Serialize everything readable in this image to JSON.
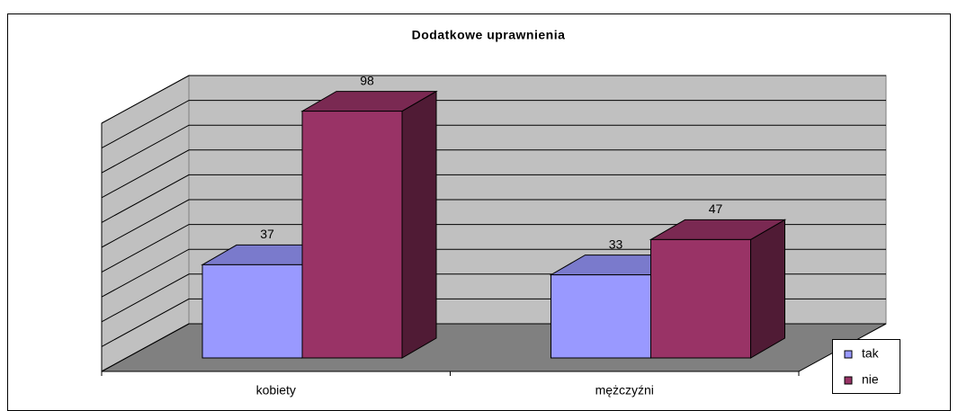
{
  "chart_data": {
    "type": "bar3d",
    "title": "Dodatkowe uprawnienia",
    "categories": [
      "kobiety",
      "mężczyźni"
    ],
    "series": [
      {
        "name": "tak",
        "color": "#9999ff",
        "values": [
          37,
          33
        ]
      },
      {
        "name": "nie",
        "color": "#993366",
        "values": [
          98,
          47
        ]
      }
    ],
    "ylim": [
      0,
      100
    ],
    "yticks": [
      0,
      10,
      20,
      30,
      40,
      50,
      60,
      70,
      80,
      90,
      100
    ],
    "grid": true,
    "legend": "right"
  }
}
